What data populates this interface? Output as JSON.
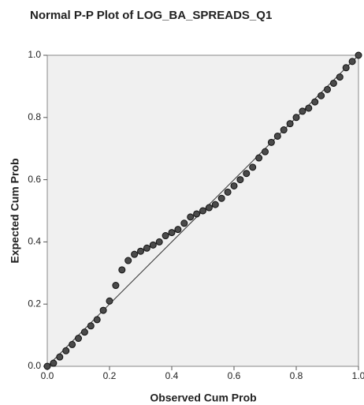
{
  "chart_data": {
    "type": "scatter",
    "title": "Normal P-P Plot of LOG_BA_SPREADS_Q1",
    "x_label": "Observed Cum Prob",
    "y_label": "Expected Cum Prob",
    "x": [
      0,
      0.02,
      0.04,
      0.06,
      0.08,
      0.1,
      0.12,
      0.14,
      0.16,
      0.18,
      0.2,
      0.22,
      0.24,
      0.26,
      0.28,
      0.3,
      0.32,
      0.34,
      0.36,
      0.38,
      0.4,
      0.42,
      0.44,
      0.46,
      0.48,
      0.5,
      0.52,
      0.54,
      0.56,
      0.58,
      0.6,
      0.62,
      0.64,
      0.66,
      0.68,
      0.7,
      0.72,
      0.74,
      0.76,
      0.78,
      0.8,
      0.82,
      0.84,
      0.86,
      0.88,
      0.9,
      0.92,
      0.94,
      0.96,
      0.98,
      1
    ],
    "values": [
      0,
      0.01,
      0.03,
      0.05,
      0.07,
      0.09,
      0.11,
      0.13,
      0.15,
      0.18,
      0.21,
      0.26,
      0.31,
      0.34,
      0.36,
      0.37,
      0.38,
      0.39,
      0.4,
      0.42,
      0.43,
      0.44,
      0.46,
      0.48,
      0.49,
      0.5,
      0.51,
      0.52,
      0.54,
      0.56,
      0.58,
      0.6,
      0.62,
      0.64,
      0.67,
      0.69,
      0.72,
      0.74,
      0.76,
      0.78,
      0.8,
      0.82,
      0.83,
      0.85,
      0.87,
      0.89,
      0.91,
      0.93,
      0.96,
      0.98,
      1
    ],
    "color": "#4a4a4a",
    "xlim": [
      0,
      1
    ],
    "ylim": [
      0,
      1
    ],
    "xticks": [
      {
        "value": 0,
        "label": "0.0"
      },
      0.2,
      0.4,
      0.6,
      0.8,
      {
        "value": 1,
        "label": "1.0"
      }
    ],
    "yticks": [
      {
        "value": 0,
        "label": "0.0"
      },
      0.2,
      0.4,
      0.6,
      0.8,
      {
        "value": 1,
        "label": "1.0"
      }
    ],
    "reference_line": true
  }
}
